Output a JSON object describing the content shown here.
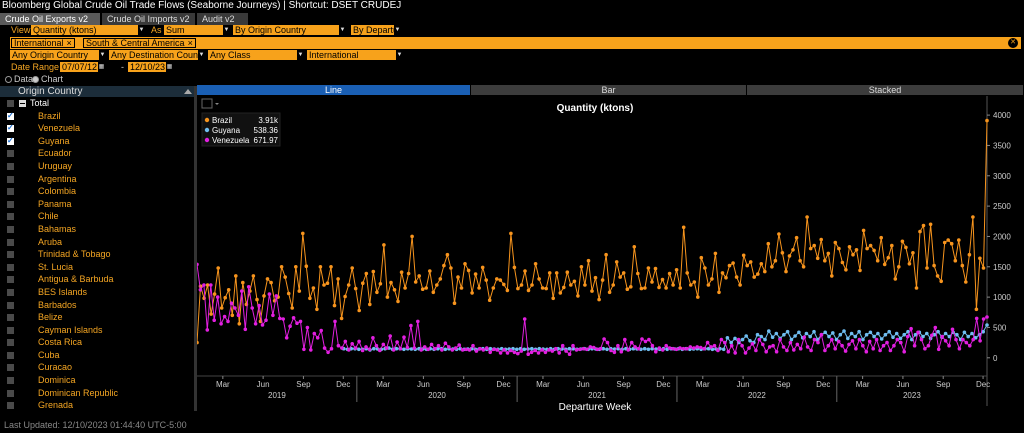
{
  "window": {
    "title": "Bloomberg Global Crude Oil Trade Flows (Seaborne Journeys) | Shortcut: DSET CRUDEJ"
  },
  "tabs": [
    {
      "label": "Crude Oil Exports v2",
      "active": true
    },
    {
      "label": "Crude Oil Imports v2",
      "active": false
    },
    {
      "label": "Audit v2",
      "active": false
    }
  ],
  "controls": {
    "view_label": "View",
    "view_value": "Quantity (ktons)",
    "as_label": "As",
    "as_value": "Sum",
    "group_value": "By Origin Country",
    "by_value": "By Departur",
    "filter_chips": [
      "International",
      "South & Central America"
    ],
    "origin_value": "Any Origin Country",
    "destination_value": "Any Destination Coun",
    "class_value": "Any Class",
    "scope_value": "International",
    "date_range_label": "Date Range",
    "date_from": "07/07/12",
    "date_sep": "-",
    "date_to": "12/10/23",
    "mode_data": "Data",
    "mode_chart": "Chart",
    "mode_selected": "Chart"
  },
  "sidebar": {
    "header": "Origin Country",
    "total_label": "Total",
    "items": [
      {
        "label": "Brazil",
        "checked": true
      },
      {
        "label": "Venezuela",
        "checked": true
      },
      {
        "label": "Guyana",
        "checked": true
      },
      {
        "label": "Ecuador",
        "checked": false
      },
      {
        "label": "Uruguay",
        "checked": false
      },
      {
        "label": "Argentina",
        "checked": false
      },
      {
        "label": "Colombia",
        "checked": false
      },
      {
        "label": "Panama",
        "checked": false
      },
      {
        "label": "Chile",
        "checked": false
      },
      {
        "label": "Bahamas",
        "checked": false
      },
      {
        "label": "Aruba",
        "checked": false
      },
      {
        "label": "Trinidad & Tobago",
        "checked": false
      },
      {
        "label": "St. Lucia",
        "checked": false
      },
      {
        "label": "Antigua & Barbuda",
        "checked": false
      },
      {
        "label": "BES Islands",
        "checked": false
      },
      {
        "label": "Barbados",
        "checked": false
      },
      {
        "label": "Belize",
        "checked": false
      },
      {
        "label": "Cayman Islands",
        "checked": false
      },
      {
        "label": "Costa Rica",
        "checked": false
      },
      {
        "label": "Cuba",
        "checked": false
      },
      {
        "label": "Curacao",
        "checked": false
      },
      {
        "label": "Dominica",
        "checked": false
      },
      {
        "label": "Dominican Republic",
        "checked": false
      },
      {
        "label": "Grenada",
        "checked": false
      }
    ]
  },
  "chart_tabs": [
    {
      "label": "Line",
      "active": true
    },
    {
      "label": "Bar",
      "active": false
    },
    {
      "label": "Stacked",
      "active": false
    }
  ],
  "chart_data": {
    "type": "line",
    "title": "Quantity (ktons)",
    "xlabel": "Departure Week",
    "ylabel": "",
    "x_range": [
      "2019-01-01",
      "2023-12-10"
    ],
    "ylim": [
      -300,
      4150
    ],
    "y_ticks": [
      0,
      500,
      1000,
      1500,
      2000,
      2500,
      3000,
      3500,
      4000
    ],
    "x_month_ticks": [
      "Mar",
      "Jun",
      "Sep",
      "Dec",
      "Mar",
      "Jun",
      "Sep",
      "Dec",
      "Mar",
      "Jun",
      "Sep",
      "Dec",
      "Mar",
      "Jun",
      "Sep",
      "Dec",
      "Mar",
      "Jun",
      "Sep",
      "Dec"
    ],
    "x_year_ticks": [
      "2019",
      "2020",
      "2021",
      "2022",
      "2023"
    ],
    "grid": false,
    "legend_position": "top-left",
    "series": [
      {
        "name": "Brazil",
        "last_value": "3.91k",
        "color": "#f7941d",
        "values": [
          250,
          1180,
          980,
          1200,
          720,
          1050,
          1480,
          820,
          990,
          1120,
          700,
          1350,
          560,
          1240,
          880,
          1100,
          1350,
          960,
          600,
          1020,
          1300,
          1240,
          940,
          1000,
          1500,
          1330,
          1060,
          820,
          1500,
          1100,
          2050,
          1510,
          980,
          1150,
          800,
          1500,
          1200,
          1230,
          1500,
          860,
          1300,
          650,
          1010,
          1200,
          1480,
          1140,
          780,
          1230,
          1390,
          880,
          1420,
          1080,
          1220,
          1860,
          1000,
          1240,
          1120,
          930,
          1410,
          1150,
          1390,
          2000,
          1250,
          1350,
          1130,
          1150,
          1430,
          1080,
          1200,
          1300,
          1520,
          1700,
          1480,
          900,
          1330,
          1150,
          1550,
          1440,
          1070,
          1380,
          1150,
          1490,
          1280,
          950,
          1150,
          1300,
          1280,
          1210,
          1110,
          2050,
          1490,
          1140,
          1200,
          1430,
          1110,
          1200,
          1550,
          1300,
          1150,
          1140,
          1400,
          980,
          1400,
          1070,
          1160,
          1410,
          1200,
          1260,
          1020,
          1500,
          1200,
          1600,
          1100,
          1320,
          960,
          1280,
          1700,
          1080,
          1200,
          1580,
          1330,
          1400,
          1130,
          1170,
          1830,
          1390,
          1140,
          1150,
          1480,
          1250,
          1470,
          1160,
          1290,
          1150,
          1390,
          1200,
          1450,
          1150,
          2150,
          1400,
          1200,
          1250,
          1000,
          1650,
          1480,
          1200,
          1300,
          1720,
          1080,
          1400,
          1320,
          1520,
          1560,
          1330,
          1200,
          1690,
          1520,
          1580,
          1330,
          1380,
          1550,
          1420,
          1880,
          1500,
          1600,
          2040,
          1730,
          1420,
          1680,
          1780,
          1980,
          1600,
          1500,
          2320,
          1800,
          1850,
          1640,
          1950,
          1600,
          1720,
          1350,
          1900,
          1800,
          1570,
          1450,
          1830,
          1700,
          1780,
          1440,
          2100,
          1800,
          1850,
          1770,
          1600,
          1980,
          1540,
          1650,
          1850,
          1300,
          1500,
          1920,
          1820,
          1550,
          1730,
          1150,
          2080,
          2180,
          1480,
          2200,
          1520,
          1350,
          1260,
          1900,
          1940,
          1880,
          1600,
          1940,
          1520,
          1250,
          1700,
          2320,
          800,
          1640,
          1480,
          3910
        ]
      },
      {
        "name": "Guyana",
        "last_value": "538.36",
        "color": "#6fbdf0",
        "values": [
          null,
          null,
          null,
          null,
          null,
          null,
          null,
          null,
          null,
          null,
          null,
          null,
          null,
          null,
          null,
          null,
          null,
          null,
          null,
          null,
          null,
          null,
          null,
          null,
          null,
          null,
          null,
          null,
          null,
          null,
          null,
          null,
          null,
          null,
          null,
          null,
          null,
          null,
          null,
          150,
          140,
          150,
          150,
          140,
          140,
          150,
          130,
          150,
          145,
          140,
          150,
          160,
          140,
          150,
          150,
          140,
          150,
          145,
          140,
          150,
          145,
          140,
          150,
          140,
          150,
          150,
          140,
          150,
          145,
          140,
          150,
          140,
          145,
          150,
          140,
          145,
          150,
          140,
          150,
          145,
          140,
          150,
          140,
          145,
          150,
          140,
          150,
          140,
          145,
          150,
          140,
          150,
          145,
          140,
          150,
          140,
          150,
          145,
          140,
          150,
          150,
          140,
          145,
          150,
          140,
          150,
          145,
          140,
          150,
          140,
          150,
          145,
          150,
          140,
          150,
          140,
          150,
          145,
          140,
          150,
          140,
          150,
          145,
          140,
          150,
          140,
          150,
          145,
          150,
          140,
          150,
          140,
          145,
          150,
          140,
          150,
          150,
          140,
          145,
          150,
          140,
          330,
          250,
          320,
          250,
          300,
          360,
          280,
          250,
          380,
          350,
          300,
          440,
          340,
          400,
          320,
          380,
          430,
          300,
          360,
          420,
          330,
          400,
          350,
          430,
          300,
          380,
          420,
          350,
          410,
          300,
          380,
          440,
          320,
          400,
          350,
          430,
          300,
          380,
          420,
          350,
          400,
          310,
          380,
          430,
          340,
          400,
          320,
          380,
          430,
          300,
          380,
          420,
          350,
          400,
          320,
          380,
          430,
          340,
          400,
          350,
          420,
          380,
          300,
          420,
          350,
          400,
          330,
          380,
          430,
          540
        ]
      },
      {
        "name": "Venezuela",
        "last_value": "671.97",
        "color": "#e21fe0",
        "values": [
          1540,
          1120,
          1200,
          460,
          1200,
          620,
          1000,
          560,
          680,
          600,
          900,
          820,
          700,
          1100,
          470,
          1170,
          820,
          560,
          860,
          540,
          620,
          1050,
          700,
          1020,
          650,
          640,
          330,
          520,
          660,
          570,
          600,
          140,
          500,
          130,
          400,
          330,
          450,
          160,
          90,
          150,
          600,
          200,
          160,
          270,
          130,
          230,
          160,
          270,
          120,
          180,
          140,
          330,
          200,
          120,
          220,
          160,
          360,
          130,
          260,
          150,
          340,
          170,
          530,
          160,
          600,
          130,
          180,
          140,
          220,
          150,
          200,
          130,
          240,
          180,
          130,
          160,
          210,
          130,
          140,
          130,
          200,
          110,
          150,
          130,
          160,
          90,
          140,
          130,
          80,
          130,
          80,
          120,
          90,
          70,
          110,
          640,
          60,
          90,
          120,
          80,
          130,
          90,
          130,
          110,
          150,
          80,
          200,
          110,
          60,
          200,
          130,
          140,
          150,
          140,
          180,
          170,
          140,
          150,
          310,
          250,
          120,
          90,
          200,
          100,
          300,
          130,
          250,
          180,
          150,
          310,
          270,
          300,
          200,
          100,
          160,
          130,
          200,
          160,
          150,
          140,
          160,
          150,
          150,
          180,
          160,
          180,
          170,
          150,
          250,
          180,
          200,
          120,
          300,
          250,
          100,
          200,
          80,
          300,
          200,
          80,
          160,
          230,
          120,
          300,
          220,
          100,
          180,
          200,
          100,
          300,
          180,
          120,
          250,
          130,
          220,
          150,
          340,
          180,
          120,
          300,
          250,
          380,
          120,
          200,
          300,
          150,
          270,
          200,
          110,
          220,
          280,
          150,
          300,
          200,
          100,
          270,
          150,
          300,
          120,
          200,
          250,
          120,
          200,
          300,
          250,
          100,
          350,
          480,
          200,
          420,
          300,
          150,
          200,
          370,
          500,
          140,
          350,
          280,
          200,
          470,
          300,
          150,
          300,
          250,
          200,
          300,
          650,
          280,
          640,
          672
        ]
      }
    ]
  },
  "status": {
    "last_updated": "Last Updated: 12/10/2023 01:44:40 UTC-5:00"
  }
}
